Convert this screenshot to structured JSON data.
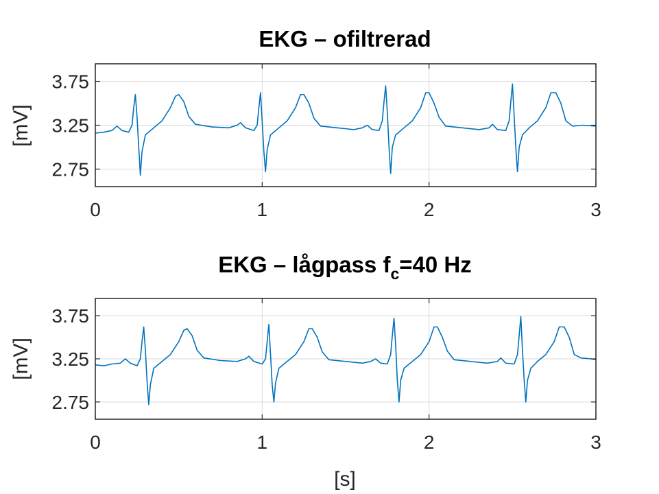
{
  "colors": {
    "trace": "#0072bd",
    "axes": "#262626",
    "grid": "#d9d9d9"
  },
  "chart_data": [
    {
      "type": "line",
      "title": "EKG – ofiltrerad",
      "title_subscript": "",
      "title_suffix": "",
      "ylabel": "[mV]",
      "xlabel": "",
      "xlim": [
        0,
        3
      ],
      "ylim": [
        2.55,
        3.95
      ],
      "xticks": [
        0,
        1,
        2,
        3
      ],
      "xtick_labels": [
        "0",
        "1",
        "2",
        "3"
      ],
      "yticks": [
        2.75,
        3.25,
        3.75
      ],
      "ytick_labels": [
        "2.75",
        "3.25",
        "3.75"
      ],
      "grid": true,
      "series": [
        {
          "beat_times": [
            0.24,
            0.99,
            1.75,
            2.51
          ],
          "baseline": 3.2,
          "x": [
            0,
            0.05,
            0.1,
            0.13,
            0.16,
            0.2,
            0.22,
            0.23,
            0.24,
            0.25,
            0.26,
            0.27,
            0.28,
            0.3,
            0.35,
            0.4,
            0.45,
            0.48,
            0.5,
            0.53,
            0.56,
            0.6,
            0.7,
            0.8,
            0.85,
            0.87,
            0.9,
            0.95,
            0.97,
            0.98,
            0.99,
            1.0,
            1.01,
            1.02,
            1.03,
            1.05,
            1.1,
            1.15,
            1.2,
            1.23,
            1.25,
            1.28,
            1.31,
            1.35,
            1.45,
            1.55,
            1.6,
            1.63,
            1.66,
            1.7,
            1.72,
            1.73,
            1.74,
            1.75,
            1.76,
            1.77,
            1.78,
            1.8,
            1.85,
            1.9,
            1.95,
            1.98,
            2.0,
            2.03,
            2.06,
            2.1,
            2.2,
            2.3,
            2.36,
            2.38,
            2.41,
            2.46,
            2.48,
            2.49,
            2.5,
            2.51,
            2.52,
            2.53,
            2.54,
            2.56,
            2.6,
            2.65,
            2.7,
            2.73,
            2.76,
            2.79,
            2.82,
            2.86,
            2.92,
            3.0
          ],
          "y": [
            3.16,
            3.17,
            3.19,
            3.24,
            3.19,
            3.17,
            3.25,
            3.45,
            3.6,
            3.35,
            3.0,
            2.68,
            2.95,
            3.14,
            3.22,
            3.3,
            3.45,
            3.58,
            3.6,
            3.52,
            3.35,
            3.26,
            3.23,
            3.22,
            3.25,
            3.28,
            3.22,
            3.19,
            3.25,
            3.45,
            3.62,
            3.3,
            2.95,
            2.72,
            2.97,
            3.14,
            3.22,
            3.3,
            3.45,
            3.6,
            3.6,
            3.5,
            3.33,
            3.24,
            3.22,
            3.2,
            3.22,
            3.25,
            3.2,
            3.19,
            3.3,
            3.52,
            3.7,
            3.4,
            3.0,
            2.7,
            3.0,
            3.14,
            3.22,
            3.3,
            3.45,
            3.62,
            3.62,
            3.5,
            3.34,
            3.24,
            3.22,
            3.2,
            3.22,
            3.26,
            3.2,
            3.19,
            3.3,
            3.52,
            3.72,
            3.35,
            3.0,
            2.72,
            3.0,
            3.14,
            3.22,
            3.3,
            3.45,
            3.62,
            3.62,
            3.5,
            3.3,
            3.24,
            3.25,
            3.24
          ]
        }
      ]
    },
    {
      "type": "line",
      "title": "EKG – lågpass f",
      "title_subscript": "c",
      "title_suffix": "=40 Hz",
      "ylabel": "[mV]",
      "xlabel": "[s]",
      "xlim": [
        0,
        3
      ],
      "ylim": [
        2.55,
        3.95
      ],
      "xticks": [
        0,
        1,
        2,
        3
      ],
      "xtick_labels": [
        "0",
        "1",
        "2",
        "3"
      ],
      "yticks": [
        2.75,
        3.25,
        3.75
      ],
      "ytick_labels": [
        "2.75",
        "3.25",
        "3.75"
      ],
      "grid": true,
      "series": [
        {
          "x": [
            0,
            0.05,
            0.1,
            0.15,
            0.18,
            0.21,
            0.25,
            0.27,
            0.28,
            0.29,
            0.3,
            0.31,
            0.32,
            0.33,
            0.35,
            0.4,
            0.45,
            0.5,
            0.53,
            0.55,
            0.58,
            0.61,
            0.65,
            0.75,
            0.85,
            0.9,
            0.92,
            0.95,
            1.0,
            1.02,
            1.03,
            1.04,
            1.05,
            1.06,
            1.07,
            1.08,
            1.1,
            1.15,
            1.2,
            1.25,
            1.28,
            1.3,
            1.33,
            1.36,
            1.4,
            1.5,
            1.6,
            1.65,
            1.68,
            1.71,
            1.75,
            1.77,
            1.78,
            1.79,
            1.8,
            1.81,
            1.82,
            1.83,
            1.85,
            1.9,
            1.95,
            2.0,
            2.03,
            2.05,
            2.08,
            2.11,
            2.15,
            2.25,
            2.35,
            2.41,
            2.43,
            2.46,
            2.51,
            2.53,
            2.54,
            2.55,
            2.56,
            2.57,
            2.58,
            2.59,
            2.61,
            2.65,
            2.7,
            2.75,
            2.78,
            2.81,
            2.84,
            2.87,
            2.91,
            2.97,
            3.0
          ],
          "y": [
            3.18,
            3.17,
            3.19,
            3.2,
            3.25,
            3.2,
            3.17,
            3.25,
            3.45,
            3.62,
            3.35,
            3.0,
            2.72,
            2.95,
            3.14,
            3.22,
            3.3,
            3.45,
            3.58,
            3.6,
            3.52,
            3.35,
            3.26,
            3.23,
            3.22,
            3.25,
            3.28,
            3.22,
            3.19,
            3.25,
            3.45,
            3.65,
            3.3,
            2.95,
            2.75,
            2.97,
            3.14,
            3.22,
            3.3,
            3.45,
            3.6,
            3.6,
            3.5,
            3.33,
            3.24,
            3.22,
            3.2,
            3.22,
            3.25,
            3.2,
            3.19,
            3.3,
            3.52,
            3.72,
            3.4,
            3.0,
            2.75,
            3.0,
            3.14,
            3.22,
            3.3,
            3.45,
            3.62,
            3.62,
            3.5,
            3.34,
            3.24,
            3.22,
            3.2,
            3.22,
            3.26,
            3.2,
            3.19,
            3.3,
            3.52,
            3.74,
            3.35,
            3.0,
            2.75,
            3.0,
            3.14,
            3.22,
            3.3,
            3.45,
            3.62,
            3.62,
            3.5,
            3.3,
            3.26,
            3.25,
            3.24
          ]
        }
      ]
    }
  ]
}
